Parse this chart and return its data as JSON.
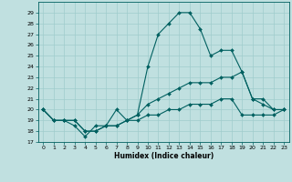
{
  "title": "",
  "xlabel": "Humidex (Indice chaleur)",
  "bg_color": "#c0e0e0",
  "grid_color": "#a0cccc",
  "line_color": "#006060",
  "xlim": [
    -0.5,
    23.5
  ],
  "ylim": [
    17,
    30
  ],
  "yticks": [
    17,
    18,
    19,
    20,
    21,
    22,
    23,
    24,
    25,
    26,
    27,
    28,
    29
  ],
  "xticks": [
    0,
    1,
    2,
    3,
    4,
    5,
    6,
    7,
    8,
    9,
    10,
    11,
    12,
    13,
    14,
    15,
    16,
    17,
    18,
    19,
    20,
    21,
    22,
    23
  ],
  "line1_x": [
    0,
    1,
    2,
    3,
    4,
    5,
    6,
    7,
    8,
    9,
    10,
    11,
    12,
    13,
    14,
    15,
    16,
    17,
    18,
    19,
    20,
    21,
    22,
    23
  ],
  "line1_y": [
    20,
    19,
    19,
    18.5,
    17.5,
    18.5,
    18.5,
    20,
    19,
    19.5,
    24,
    27,
    28,
    29,
    29,
    27.5,
    25,
    25.5,
    25.5,
    23.5,
    21,
    20.5,
    20,
    20
  ],
  "line2_x": [
    0,
    1,
    2,
    3,
    4,
    5,
    6,
    7,
    8,
    9,
    10,
    11,
    12,
    13,
    14,
    15,
    16,
    17,
    18,
    19,
    20,
    21,
    22,
    23
  ],
  "line2_y": [
    20,
    19,
    19,
    19,
    18,
    18,
    18.5,
    18.5,
    19,
    19.5,
    20.5,
    21,
    21.5,
    22,
    22.5,
    22.5,
    22.5,
    23,
    23,
    23.5,
    21,
    21,
    20,
    20
  ],
  "line3_x": [
    0,
    1,
    2,
    3,
    4,
    5,
    6,
    7,
    8,
    9,
    10,
    11,
    12,
    13,
    14,
    15,
    16,
    17,
    18,
    19,
    20,
    21,
    22,
    23
  ],
  "line3_y": [
    20,
    19,
    19,
    19,
    18,
    18,
    18.5,
    18.5,
    19,
    19,
    19.5,
    19.5,
    20,
    20,
    20.5,
    20.5,
    20.5,
    21,
    21,
    19.5,
    19.5,
    19.5,
    19.5,
    20
  ]
}
